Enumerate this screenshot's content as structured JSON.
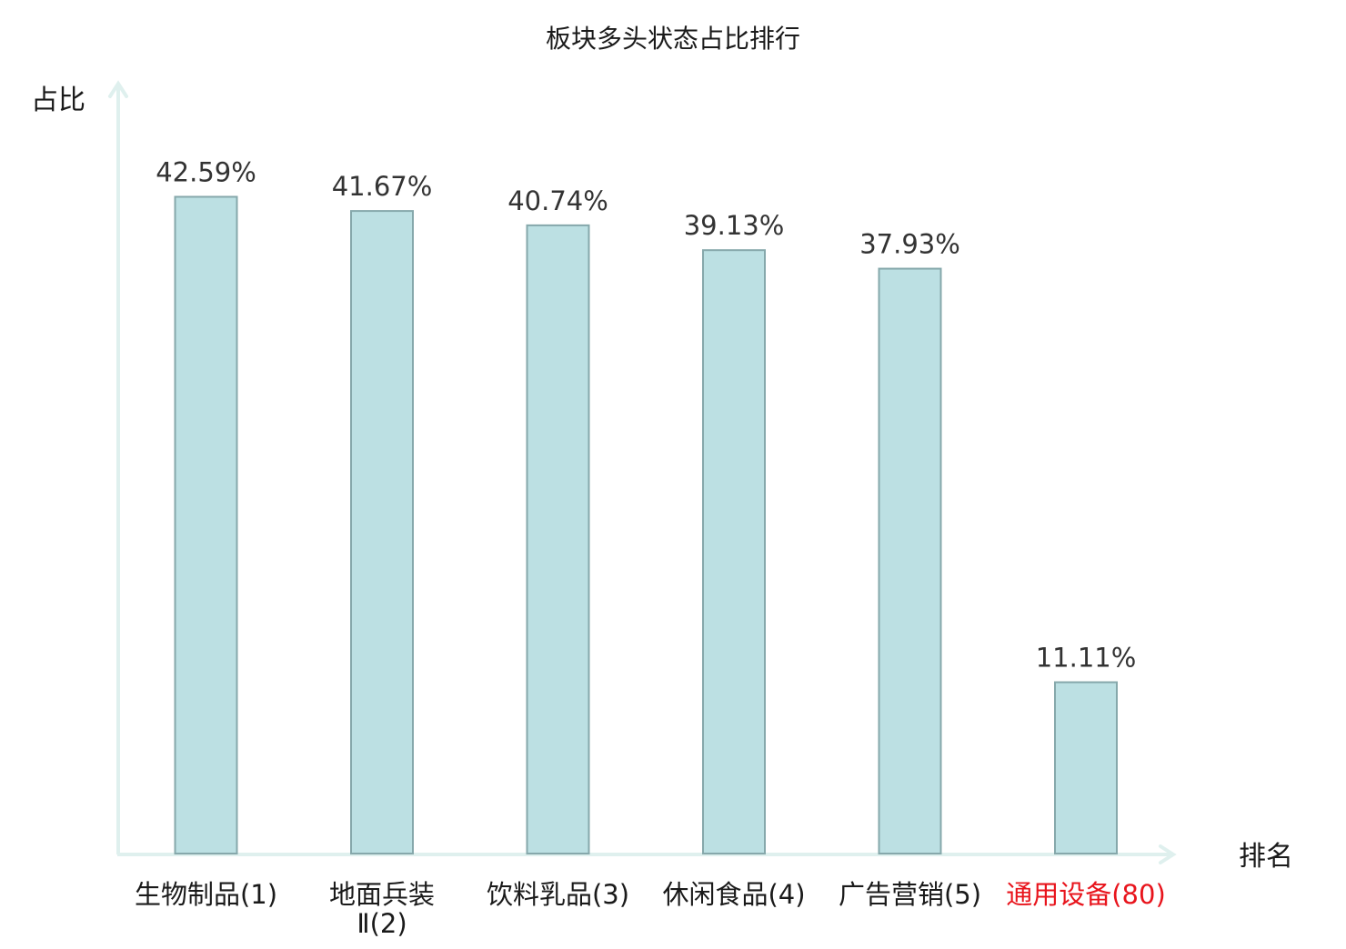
{
  "chart_data": {
    "type": "bar",
    "title": "板块多头状态占比排行",
    "ylabel": "占比",
    "xlabel": "排名",
    "ylim": [
      0,
      50
    ],
    "grid": false,
    "legend": "none",
    "value_format": "percent_2dp",
    "categories": [
      {
        "lines": [
          "生物制品(1)"
        ],
        "highlight": false
      },
      {
        "lines": [
          "地面兵装",
          "Ⅱ(2)"
        ],
        "highlight": false
      },
      {
        "lines": [
          "饮料乳品(3)"
        ],
        "highlight": false
      },
      {
        "lines": [
          "休闲食品(4)"
        ],
        "highlight": false
      },
      {
        "lines": [
          "广告营销(5)"
        ],
        "highlight": false
      },
      {
        "lines": [
          "通用设备(80)"
        ],
        "highlight": true
      }
    ],
    "values": [
      42.59,
      41.67,
      40.74,
      39.13,
      37.93,
      11.11
    ],
    "value_labels": [
      "42.59%",
      "41.67%",
      "40.74%",
      "39.13%",
      "37.93%",
      "11.11%"
    ],
    "colors": {
      "bar_fill": "#bce0e3",
      "bar_stroke": "#86a8ab",
      "axis": "#dff0ee",
      "label_text": "#1a1a1a",
      "highlight_text": "#e8141c",
      "value_text": "#333333"
    }
  }
}
